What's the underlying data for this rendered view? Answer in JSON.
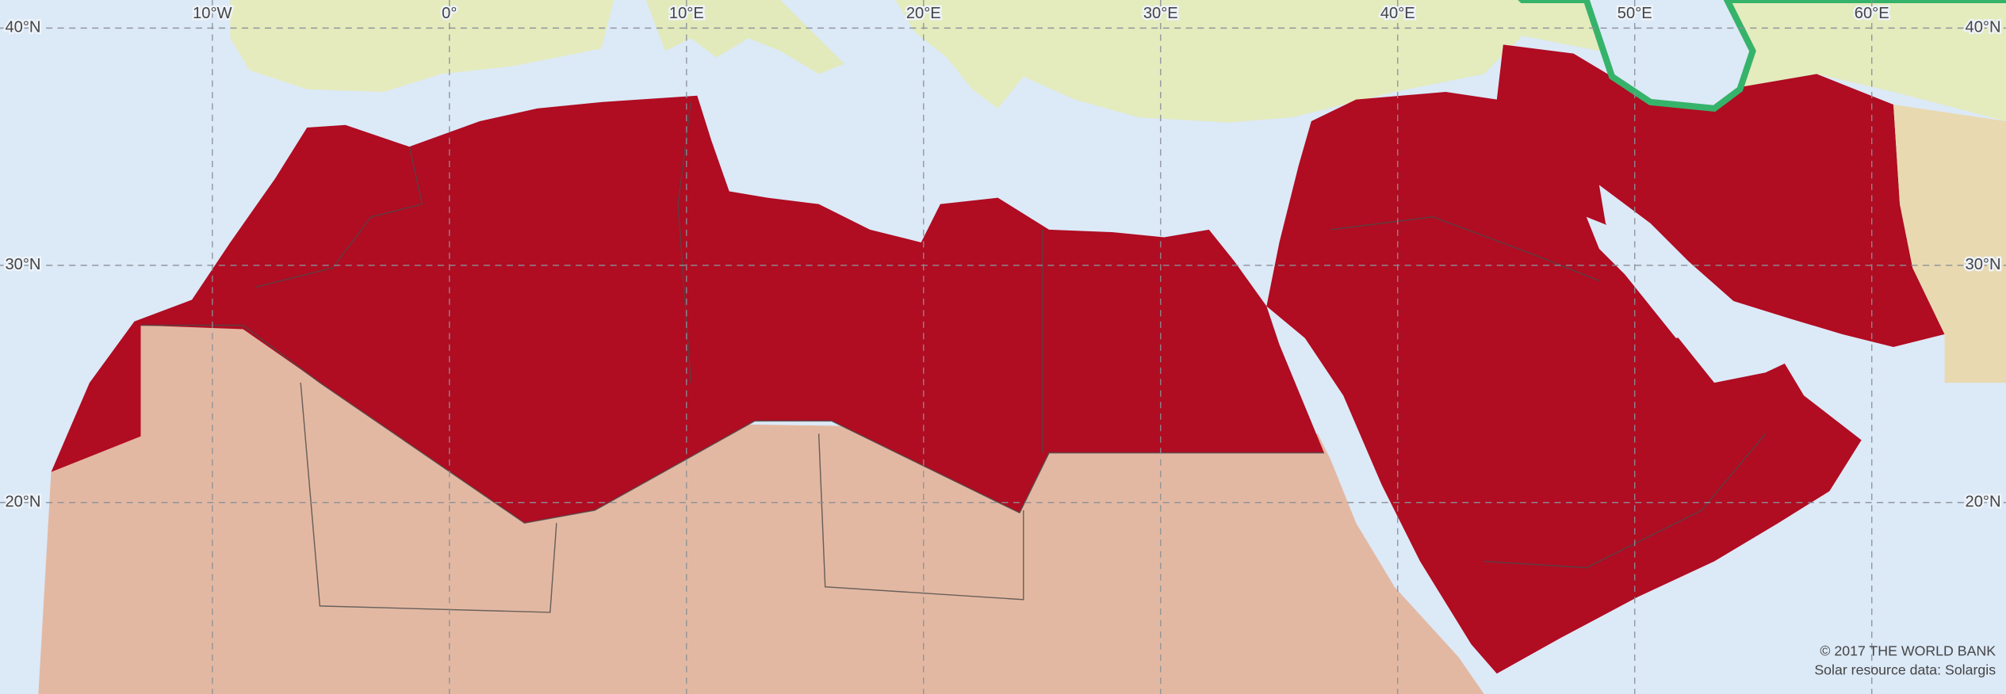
{
  "grid": {
    "longitude_labels": [
      "10°W",
      "0°",
      "10°E",
      "20°E",
      "30°E",
      "40°E",
      "50°E",
      "60°E"
    ],
    "latitude_labels": [
      "40°N",
      "30°N",
      "20°N"
    ]
  },
  "credits": {
    "copyright": "© 2017 THE WORLD BANK",
    "source": "Solar resource data: Solargis"
  }
}
